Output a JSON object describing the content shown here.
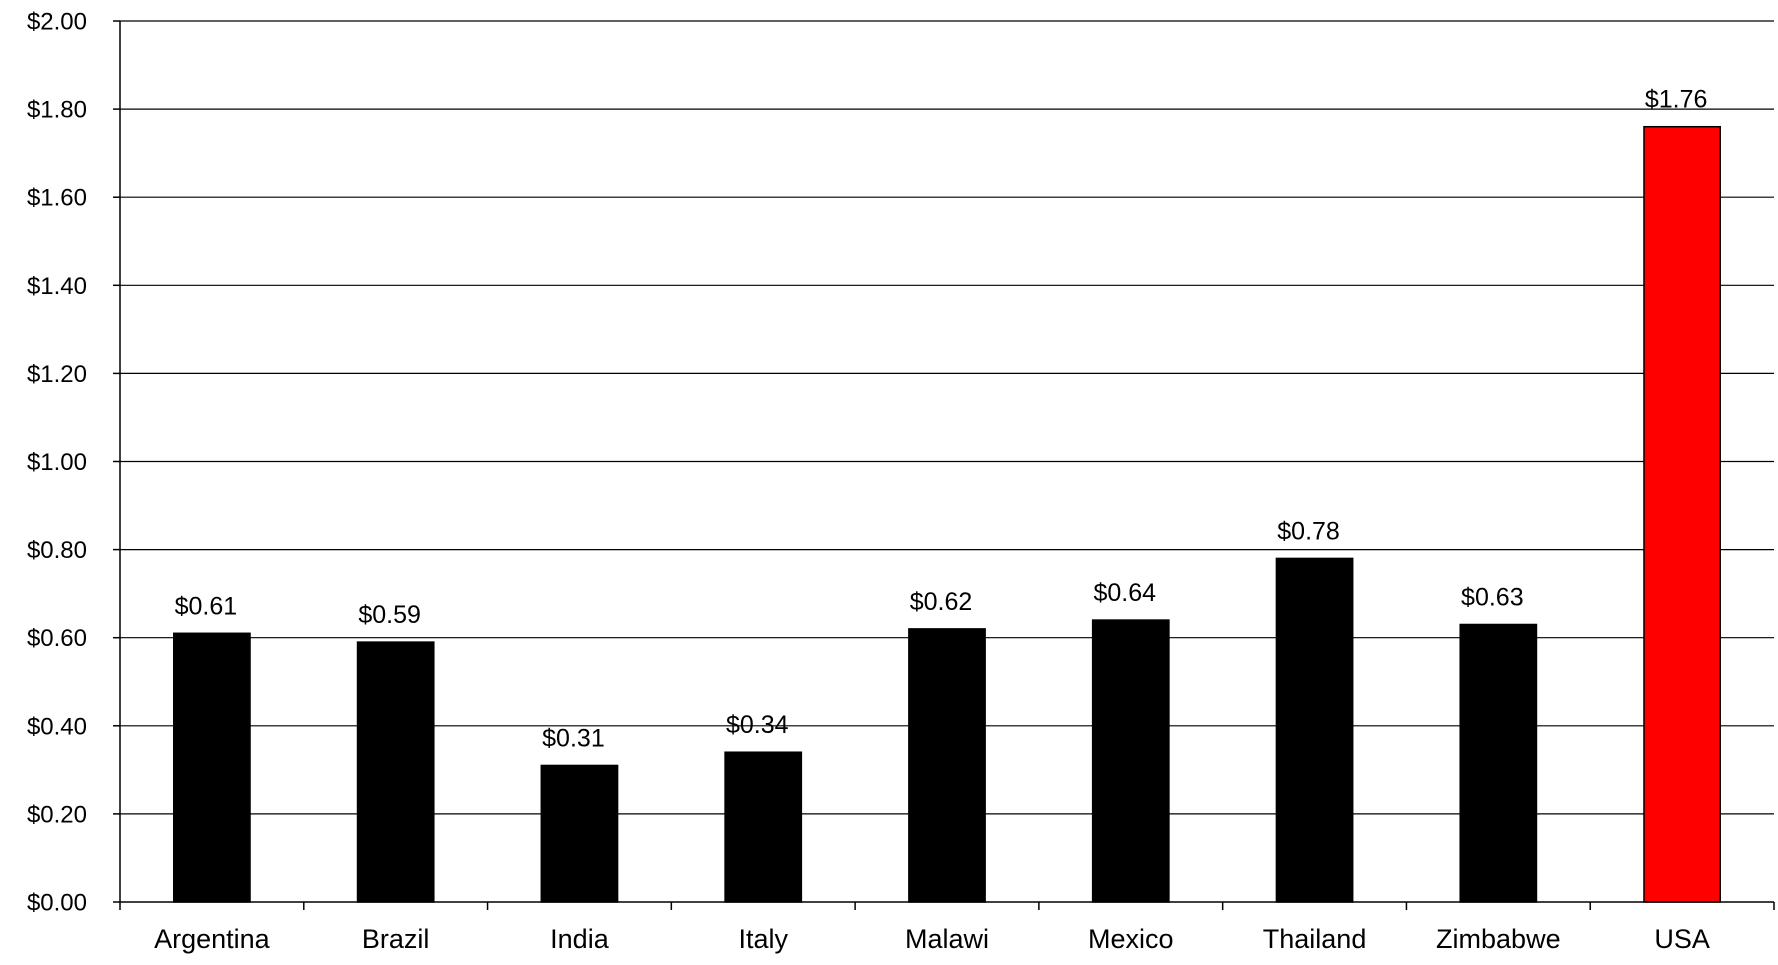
{
  "chart_data": {
    "type": "bar",
    "title": "",
    "xlabel": "",
    "ylabel": "",
    "categories": [
      "Argentina",
      "Brazil",
      "India",
      "Italy",
      "Malawi",
      "Mexico",
      "Thailand",
      "Zimbabwe",
      "USA"
    ],
    "values": [
      0.61,
      0.59,
      0.31,
      0.34,
      0.62,
      0.64,
      0.78,
      0.63,
      1.76
    ],
    "data_labels": [
      "$0.61",
      "$0.59",
      "$0.31",
      "$0.34",
      "$0.62",
      "$0.64",
      "$0.78",
      "$0.63",
      "$1.76"
    ],
    "ylim": [
      0,
      2
    ],
    "y_ticks": [
      0,
      0.2,
      0.4,
      0.6,
      0.8,
      1.0,
      1.2,
      1.4,
      1.6,
      1.8,
      2.0
    ],
    "y_tick_labels": [
      "$0.00",
      "$0.20",
      "$0.40",
      "$0.60",
      "$0.80",
      "$1.00",
      "$1.20",
      "$1.40",
      "$1.60",
      "$1.80",
      "$2.00"
    ],
    "grid": true,
    "legend": "none",
    "colors": {
      "bar": "#000000",
      "highlight": "#ff0000",
      "highlight_category": "USA",
      "gridline": "#000000",
      "axis": "#000000"
    }
  }
}
